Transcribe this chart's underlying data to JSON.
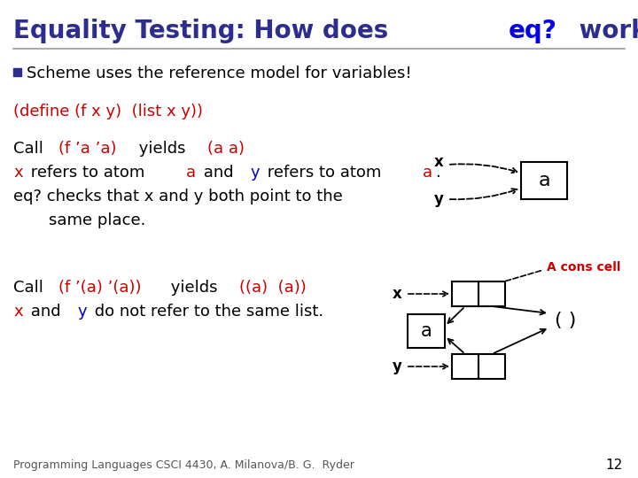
{
  "title_part1": "Equality Testing: How does ",
  "title_part2": "eq?",
  "title_part3": " work?",
  "bullet": "Scheme uses the reference model for variables!",
  "code_line": "(define (f x y)  (list x y))",
  "footer": "Programming Languages CSCI 4430, A. Milanova/B. G.  Ryder",
  "page_num": "12",
  "title_dark": "#2d2d8f",
  "title_blue": "#0000ee",
  "red": "#cc0000",
  "blue": "#0000cc",
  "black": "#000000",
  "slide_bg": "#ffffff",
  "line_color": "#999999"
}
